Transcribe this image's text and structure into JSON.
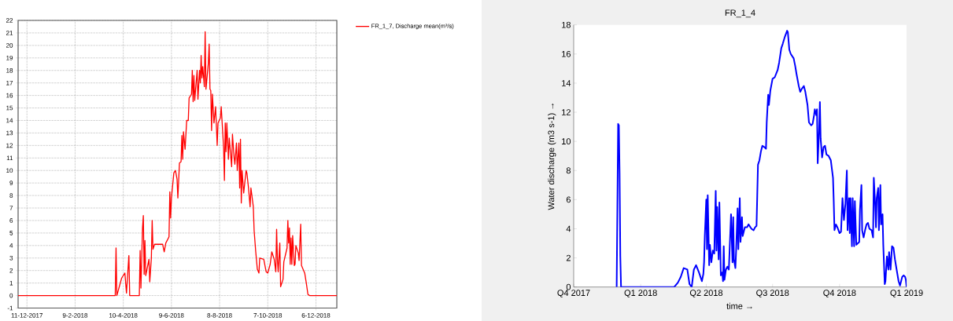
{
  "chart_data": [
    {
      "type": "line",
      "x": [
        "2017-11-30",
        "2018-03-31",
        "2018-04-01",
        "2018-04-02",
        "2018-04-08",
        "2018-04-12",
        "2018-04-14",
        "2018-04-17",
        "2018-04-18",
        "2018-04-30",
        "2018-05-01",
        "2018-05-02",
        "2018-05-04",
        "2018-05-05",
        "2018-05-06",
        "2018-05-07",
        "2018-05-08",
        "2018-05-12",
        "2018-05-13",
        "2018-05-15",
        "2018-05-16",
        "2018-05-17",
        "2018-05-19",
        "2018-05-29",
        "2018-05-31",
        "2018-06-02",
        "2018-06-06",
        "2018-06-07",
        "2018-06-08",
        "2018-06-09",
        "2018-06-12",
        "2018-06-14",
        "2018-06-16",
        "2018-06-17",
        "2018-06-19",
        "2018-06-21",
        "2018-06-22",
        "2018-06-23",
        "2018-06-24",
        "2018-06-26",
        "2018-06-28",
        "2018-06-30",
        "2018-07-01",
        "2018-07-04",
        "2018-07-05",
        "2018-07-06",
        "2018-07-07",
        "2018-07-08",
        "2018-07-11",
        "2018-07-12",
        "2018-07-14",
        "2018-07-15",
        "2018-07-16",
        "2018-07-17",
        "2018-07-18",
        "2018-07-20",
        "2018-07-21",
        "2018-07-22",
        "2018-07-25",
        "2018-07-26",
        "2018-07-27",
        "2018-07-28",
        "2018-07-29",
        "2018-07-30",
        "2018-08-01",
        "2018-08-03",
        "2018-08-05",
        "2018-08-06",
        "2018-08-09",
        "2018-08-10",
        "2018-08-13",
        "2018-08-14",
        "2018-08-15",
        "2018-08-16",
        "2018-08-17",
        "2018-08-19",
        "2018-08-20",
        "2018-08-23",
        "2018-08-24",
        "2018-08-26",
        "2018-08-27",
        "2018-08-29",
        "2018-08-30",
        "2018-09-01",
        "2018-09-02",
        "2018-09-03",
        "2018-09-04",
        "2018-09-05",
        "2018-09-07",
        "2018-09-10",
        "2018-09-11",
        "2018-09-13",
        "2018-09-15",
        "2018-09-16",
        "2018-09-19",
        "2018-09-20",
        "2018-09-22",
        "2018-09-24",
        "2018-09-26",
        "2018-09-27",
        "2018-10-02",
        "2018-10-05",
        "2018-10-07",
        "2018-10-10",
        "2018-10-12",
        "2018-10-15",
        "2018-10-17",
        "2018-10-18",
        "2018-10-19",
        "2018-10-20",
        "2018-10-22",
        "2018-10-23",
        "2018-10-26",
        "2018-10-27",
        "2018-10-31",
        "2018-11-01",
        "2018-11-02",
        "2018-11-03",
        "2018-11-04",
        "2018-11-05",
        "2018-11-06",
        "2018-11-07",
        "2018-11-09",
        "2018-11-10",
        "2018-11-11",
        "2018-11-14",
        "2018-11-15",
        "2018-11-17",
        "2018-11-18",
        "2018-11-22",
        "2018-11-24",
        "2018-11-26",
        "2018-11-28",
        "2019-01-01"
      ],
      "series": [
        {
          "name": "FR_1_7, Discharge mean(m³/s)",
          "color": "#ff0000",
          "values": [
            0,
            0,
            3.8,
            0,
            1.4,
            1.8,
            0.2,
            3.2,
            0,
            0,
            3.6,
            0.6,
            5.4,
            6.4,
            1.7,
            4.4,
            1.6,
            2.9,
            1.1,
            3.0,
            6.0,
            3.7,
            4.1,
            4.1,
            3.5,
            4.2,
            4.7,
            8.3,
            6.2,
            7.8,
            9.8,
            10.0,
            9.3,
            7.8,
            10.6,
            10.7,
            12.8,
            10.9,
            13.1,
            11.7,
            14.0,
            14.0,
            15.8,
            16.1,
            18.0,
            15.5,
            17.6,
            15.6,
            18.0,
            15.7,
            18.0,
            17.0,
            19.2,
            17.4,
            18.3,
            16.7,
            21.1,
            16.5,
            18.6,
            20.1,
            16.5,
            16.4,
            13.2,
            16.1,
            13.8,
            15.1,
            12.0,
            13.8,
            14.2,
            15.1,
            11.8,
            9.2,
            13.8,
            11.5,
            13.8,
            10.9,
            12.6,
            10.3,
            12.9,
            11.1,
            10.5,
            12.2,
            10.0,
            12.2,
            8.6,
            12.5,
            7.4,
            10.0,
            8.2,
            10.0,
            9.8,
            8.6,
            7.1,
            8.6,
            7.1,
            5.2,
            3.5,
            2.1,
            1.8,
            3.0,
            2.9,
            1.9,
            1.8,
            2.5,
            3.5,
            2.9,
            1.9,
            5.3,
            2.9,
            1.9,
            4.2,
            0.7,
            1.3,
            2.7,
            3.8,
            6.0,
            4.2,
            5.4,
            2.5,
            4.6,
            2.5,
            4.8,
            2.4,
            2.5,
            4.0,
            3.4,
            2.8,
            5.7,
            2.4,
            1.8,
            1.0,
            0.1,
            0,
            0
          ]
        }
      ],
      "xlim": [
        "2017-11-30",
        "2019-01-01"
      ],
      "ylim": [
        -1,
        22
      ],
      "xticks": [
        {
          "value": "2017-12-11",
          "label": "11-12-2017"
        },
        {
          "value": "2018-02-09",
          "label": "9-2-2018"
        },
        {
          "value": "2018-04-10",
          "label": "10-4-2018"
        },
        {
          "value": "2018-06-09",
          "label": "9-6-2018"
        },
        {
          "value": "2018-08-08",
          "label": "8-8-2018"
        },
        {
          "value": "2018-10-07",
          "label": "7-10-2018"
        },
        {
          "value": "2018-12-06",
          "label": "6-12-2018"
        }
      ],
      "yticks": [
        -1,
        0,
        1,
        2,
        3,
        4,
        5,
        6,
        7,
        8,
        9,
        10,
        11,
        12,
        13,
        14,
        15,
        16,
        17,
        18,
        19,
        20,
        21,
        22
      ],
      "grid": true,
      "legend": "top right"
    },
    {
      "type": "line",
      "title": "FR_1_4",
      "xlabel": "time →",
      "ylabel": "Water discharge (m3 s-1) →",
      "x": [
        "2017-11-29",
        "2017-11-30",
        "2017-12-01",
        "2017-12-02",
        "2017-12-03",
        "2017-12-04",
        "2017-12-05",
        "2018-02-16",
        "2018-02-21",
        "2018-02-25",
        "2018-03-01",
        "2018-03-06",
        "2018-03-09",
        "2018-03-12",
        "2018-03-15",
        "2018-03-18",
        "2018-03-22",
        "2018-03-26",
        "2018-03-28",
        "2018-03-29",
        "2018-03-30",
        "2018-04-01",
        "2018-04-02",
        "2018-04-03",
        "2018-04-05",
        "2018-04-06",
        "2018-04-08",
        "2018-04-10",
        "2018-04-12",
        "2018-04-14",
        "2018-04-15",
        "2018-04-16",
        "2018-04-18",
        "2018-04-19",
        "2018-04-21",
        "2018-04-23",
        "2018-04-24",
        "2018-04-25",
        "2018-04-26",
        "2018-04-28",
        "2018-04-30",
        "2018-05-02",
        "2018-05-05",
        "2018-05-07",
        "2018-05-08",
        "2018-05-09",
        "2018-05-11",
        "2018-05-12",
        "2018-05-14",
        "2018-05-15",
        "2018-05-17",
        "2018-05-18",
        "2018-05-20",
        "2018-05-21",
        "2018-05-24",
        "2018-05-27",
        "2018-05-29",
        "2018-06-02",
        "2018-06-05",
        "2018-06-07",
        "2018-06-09",
        "2018-06-10",
        "2018-06-11",
        "2018-06-13",
        "2018-06-15",
        "2018-06-17",
        "2018-06-20",
        "2018-06-22",
        "2018-06-23",
        "2018-06-25",
        "2018-06-26",
        "2018-06-28",
        "2018-07-01",
        "2018-07-04",
        "2018-07-08",
        "2018-07-10",
        "2018-07-13",
        "2018-07-15",
        "2018-07-18",
        "2018-07-21",
        "2018-07-22",
        "2018-07-24",
        "2018-07-26",
        "2018-07-30",
        "2018-08-01",
        "2018-08-03",
        "2018-08-06",
        "2018-08-08",
        "2018-08-10",
        "2018-08-13",
        "2018-08-15",
        "2018-08-18",
        "2018-08-20",
        "2018-08-23",
        "2018-08-25",
        "2018-08-27",
        "2018-08-28",
        "2018-08-30",
        "2018-08-31",
        "2018-09-01",
        "2018-09-03",
        "2018-09-04",
        "2018-09-05",
        "2018-09-07",
        "2018-09-09",
        "2018-09-11",
        "2018-09-13",
        "2018-09-16",
        "2018-09-19",
        "2018-09-22",
        "2018-09-23",
        "2018-09-24",
        "2018-09-26",
        "2018-09-28",
        "2018-10-01",
        "2018-10-03",
        "2018-10-05",
        "2018-10-07",
        "2018-10-09",
        "2018-10-11",
        "2018-10-12",
        "2018-10-14",
        "2018-10-15",
        "2018-10-16",
        "2018-10-18",
        "2018-10-19",
        "2018-10-21",
        "2018-10-22",
        "2018-10-24",
        "2018-10-28",
        "2018-10-29",
        "2018-10-31",
        "2018-11-01",
        "2018-11-03",
        "2018-11-05",
        "2018-11-07",
        "2018-11-09",
        "2018-11-11",
        "2018-11-14",
        "2018-11-16",
        "2018-11-17",
        "2018-11-19",
        "2018-11-20",
        "2018-11-21",
        "2018-11-23",
        "2018-11-24",
        "2018-11-26",
        "2018-11-27",
        "2018-11-29",
        "2018-11-30",
        "2018-12-02",
        "2018-12-03",
        "2018-12-05",
        "2018-12-07",
        "2018-12-08",
        "2018-12-10",
        "2018-12-12",
        "2018-12-14",
        "2018-12-16",
        "2018-12-19",
        "2018-12-21",
        "2018-12-23",
        "2018-12-26",
        "2018-12-28",
        "2018-12-30",
        "2018-12-31",
        "2019-01-01"
      ],
      "series": [
        {
          "color": "#0000ff",
          "values": [
            0,
            5.5,
            11.2,
            11.1,
            7.8,
            2.1,
            0,
            0,
            0.3,
            0.7,
            1.3,
            1.2,
            0.2,
            0,
            1.2,
            1.5,
            1.0,
            0.4,
            0.9,
            1.7,
            3.5,
            6.0,
            2.6,
            6.3,
            1.5,
            2.9,
            1.7,
            2.5,
            2.3,
            6.6,
            2.5,
            5.5,
            1.9,
            5.8,
            0.8,
            1.0,
            0.4,
            2.8,
            0.5,
            1.2,
            1.4,
            1.2,
            5.0,
            1.7,
            4.8,
            1.9,
            1.3,
            2.5,
            5.4,
            2.6,
            6.1,
            3.1,
            4.8,
            3.5,
            4.1,
            4.1,
            4.3,
            4.0,
            3.9,
            4.1,
            4.2,
            6.3,
            8.4,
            8.7,
            9.3,
            9.7,
            9.6,
            9.5,
            11.3,
            13.2,
            12.5,
            13.5,
            14.3,
            14.4,
            14.9,
            15.4,
            16.4,
            16.7,
            17.2,
            17.6,
            17.5,
            16.3,
            16.0,
            15.7,
            15.2,
            14.6,
            13.8,
            13.4,
            13.6,
            13.8,
            13.4,
            12.5,
            11.3,
            11.1,
            11.2,
            11.8,
            12.2,
            11.8,
            12.2,
            8.5,
            10.9,
            12.7,
            10.2,
            8.9,
            9.6,
            9.7,
            9.1,
            9.0,
            8.7,
            7.5,
            5.9,
            3.9,
            4.3,
            4.1,
            3.7,
            3.8,
            6.1,
            4.6,
            5.7,
            8.0,
            3.9,
            6.1,
            3.7,
            6.1,
            2.8,
            6.1,
            2.8,
            5.9,
            2.9,
            3.1,
            5.3,
            7.0,
            3.9,
            3.4,
            3.9,
            4.3,
            4.4,
            4.0,
            3.9,
            3.4,
            7.5,
            5.5,
            4.1,
            6.1,
            6.8,
            3.9,
            7.0,
            4.3,
            5.0,
            2.9,
            0.2,
            0.4,
            2.1,
            1.2,
            2.4,
            1.2,
            2.8,
            2.7,
            1.9,
            1.0,
            0.4,
            0.1,
            0.7,
            0.8,
            0.7,
            0.5,
            0
          ]
        }
      ],
      "xlim": [
        "2017-10-01",
        "2019-01-01"
      ],
      "ylim": [
        0,
        18
      ],
      "xticks": [
        {
          "value": "2017-10-01",
          "label": "Q4 2017"
        },
        {
          "value": "2018-01-01",
          "label": "Q1 2018"
        },
        {
          "value": "2018-04-01",
          "label": "Q2 2018"
        },
        {
          "value": "2018-07-01",
          "label": "Q3 2018"
        },
        {
          "value": "2018-10-01",
          "label": "Q4 2018"
        },
        {
          "value": "2019-01-01",
          "label": "Q1 2019"
        }
      ],
      "yticks": [
        0,
        2,
        4,
        6,
        8,
        10,
        12,
        14,
        16,
        18
      ]
    }
  ]
}
